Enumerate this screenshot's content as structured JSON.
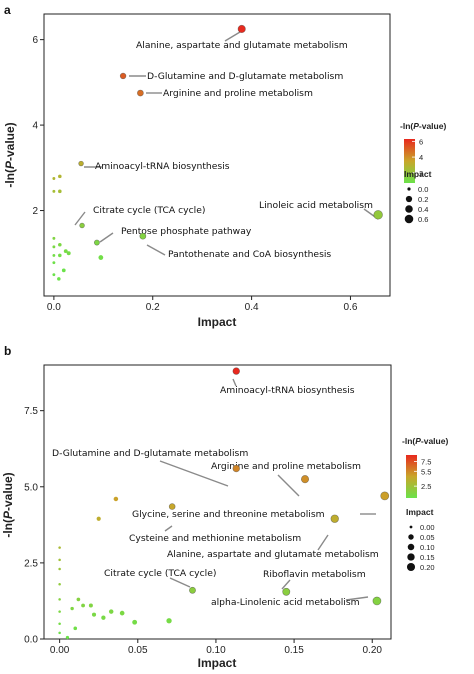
{
  "chart_data": [
    {
      "panel": "a",
      "type": "scatter",
      "xlabel": "Impact",
      "ylabel": "-ln(P-value)",
      "xlim": [
        -0.02,
        0.68
      ],
      "ylim": [
        0,
        6.6
      ],
      "xticks": [
        {
          "v": 0.0,
          "label": "0.0"
        },
        {
          "v": 0.2,
          "label": "0.2"
        },
        {
          "v": 0.4,
          "label": "0.4"
        },
        {
          "v": 0.6,
          "label": "0.6"
        }
      ],
      "yticks": [
        {
          "v": 2,
          "label": "2"
        },
        {
          "v": 4,
          "label": "4"
        },
        {
          "v": 6,
          "label": "6"
        }
      ],
      "color_legend": {
        "title_prefix": "-ln(",
        "title_italic": "P",
        "title_suffix": "-value)",
        "min": 0.7,
        "max": 6.3,
        "ticks": [
          {
            "v": 2,
            "label": "2"
          },
          {
            "v": 4,
            "label": "4"
          },
          {
            "v": 6,
            "label": "6"
          }
        ]
      },
      "size_legend": {
        "title": "Impact",
        "max": 0.66,
        "items": [
          {
            "v": 0.0,
            "label": "0.0"
          },
          {
            "v": 0.2,
            "label": "0.2"
          },
          {
            "v": 0.4,
            "label": "0.4"
          },
          {
            "v": 0.6,
            "label": "0.6"
          }
        ]
      },
      "points": [
        {
          "x": 0.38,
          "y": 6.25,
          "label": "Alanine, aspartate and glutamate metabolism"
        },
        {
          "x": 0.14,
          "y": 5.15,
          "label": "D-Glutamine and D-glutamate metabolism"
        },
        {
          "x": 0.175,
          "y": 4.75,
          "label": "Arginine and proline metabolism"
        },
        {
          "x": 0.055,
          "y": 3.1,
          "label": "Aminoacyl-tRNA biosynthesis"
        },
        {
          "x": 0.656,
          "y": 1.9,
          "label": "Linoleic acid metabolism"
        },
        {
          "x": 0.057,
          "y": 1.65,
          "label": "Citrate cycle (TCA cycle)"
        },
        {
          "x": 0.087,
          "y": 1.25,
          "label": "Pentose phosphate pathway"
        },
        {
          "x": 0.18,
          "y": 1.4,
          "label": "Pantothenate and CoA biosynthesis"
        },
        {
          "x": 0.0,
          "y": 2.75,
          "label": ""
        },
        {
          "x": 0.012,
          "y": 2.8,
          "label": ""
        },
        {
          "x": 0.0,
          "y": 2.45,
          "label": ""
        },
        {
          "x": 0.012,
          "y": 2.45,
          "label": ""
        },
        {
          "x": 0.0,
          "y": 1.35,
          "label": ""
        },
        {
          "x": 0.0,
          "y": 1.15,
          "label": ""
        },
        {
          "x": 0.0,
          "y": 0.95,
          "label": ""
        },
        {
          "x": 0.0,
          "y": 0.78,
          "label": ""
        },
        {
          "x": 0.0,
          "y": 0.5,
          "label": ""
        },
        {
          "x": 0.012,
          "y": 1.2,
          "label": ""
        },
        {
          "x": 0.012,
          "y": 0.95,
          "label": ""
        },
        {
          "x": 0.024,
          "y": 1.05,
          "label": ""
        },
        {
          "x": 0.03,
          "y": 1.0,
          "label": ""
        },
        {
          "x": 0.02,
          "y": 0.6,
          "label": ""
        },
        {
          "x": 0.01,
          "y": 0.4,
          "label": ""
        },
        {
          "x": 0.095,
          "y": 0.9,
          "label": ""
        }
      ]
    },
    {
      "panel": "b",
      "type": "scatter",
      "xlabel": "Impact",
      "ylabel": "-ln(P-value)",
      "xlim": [
        -0.01,
        0.212
      ],
      "ylim": [
        0,
        9.0
      ],
      "xticks": [
        {
          "v": 0.0,
          "label": "0.00"
        },
        {
          "v": 0.05,
          "label": "0.05"
        },
        {
          "v": 0.1,
          "label": "0.10"
        },
        {
          "v": 0.15,
          "label": "0.15"
        },
        {
          "v": 0.2,
          "label": "0.20"
        }
      ],
      "yticks": [
        {
          "v": 0.0,
          "label": "0.0"
        },
        {
          "v": 2.5,
          "label": "2.5"
        },
        {
          "v": 5.0,
          "label": "5.0"
        },
        {
          "v": 7.5,
          "label": "7.5"
        }
      ],
      "color_legend": {
        "title_prefix": "-ln(",
        "title_italic": "P",
        "title_suffix": "-value)",
        "min": 0.1,
        "max": 8.8,
        "ticks": [
          {
            "v": 2.5,
            "label": "2.5"
          },
          {
            "v": 5.5,
            "label": "5.5"
          },
          {
            "v": 7.5,
            "label": "7.5"
          }
        ]
      },
      "size_legend": {
        "title": "Impact",
        "max": 0.21,
        "items": [
          {
            "v": 0.0,
            "label": "0.00"
          },
          {
            "v": 0.05,
            "label": "0.05"
          },
          {
            "v": 0.1,
            "label": "0.10"
          },
          {
            "v": 0.15,
            "label": "0.15"
          },
          {
            "v": 0.2,
            "label": "0.20"
          }
        ]
      },
      "points": [
        {
          "x": 0.113,
          "y": 8.8,
          "label": "Aminoacyl-tRNA biosynthesis"
        },
        {
          "x": 0.113,
          "y": 5.6,
          "label": "D-Glutamine and D-glutamate metabolism"
        },
        {
          "x": 0.157,
          "y": 5.25,
          "label": "Arginine and proline metabolism"
        },
        {
          "x": 0.208,
          "y": 4.7,
          "label": "Glycine, serine and threonine metabolism"
        },
        {
          "x": 0.072,
          "y": 4.35,
          "label": "Cysteine and methionine metabolism"
        },
        {
          "x": 0.176,
          "y": 3.95,
          "label": "Alanine, aspartate and glutamate metabolism"
        },
        {
          "x": 0.085,
          "y": 1.6,
          "label": "Citrate cycle (TCA cycle)"
        },
        {
          "x": 0.145,
          "y": 1.55,
          "label": "Riboflavin metabolism"
        },
        {
          "x": 0.203,
          "y": 1.25,
          "label": "alpha-Linolenic acid metabolism"
        },
        {
          "x": 0.036,
          "y": 4.6,
          "label": ""
        },
        {
          "x": 0.025,
          "y": 3.95,
          "label": ""
        },
        {
          "x": 0.0,
          "y": 3.0,
          "label": ""
        },
        {
          "x": 0.0,
          "y": 2.6,
          "label": ""
        },
        {
          "x": 0.0,
          "y": 2.3,
          "label": ""
        },
        {
          "x": 0.0,
          "y": 1.8,
          "label": ""
        },
        {
          "x": 0.0,
          "y": 1.3,
          "label": ""
        },
        {
          "x": 0.0,
          "y": 0.9,
          "label": ""
        },
        {
          "x": 0.0,
          "y": 0.5,
          "label": ""
        },
        {
          "x": 0.0,
          "y": 0.2,
          "label": ""
        },
        {
          "x": 0.008,
          "y": 1.0,
          "label": ""
        },
        {
          "x": 0.01,
          "y": 0.35,
          "label": ""
        },
        {
          "x": 0.012,
          "y": 1.3,
          "label": ""
        },
        {
          "x": 0.015,
          "y": 1.1,
          "label": ""
        },
        {
          "x": 0.02,
          "y": 1.1,
          "label": ""
        },
        {
          "x": 0.022,
          "y": 0.8,
          "label": ""
        },
        {
          "x": 0.028,
          "y": 0.7,
          "label": ""
        },
        {
          "x": 0.033,
          "y": 0.9,
          "label": ""
        },
        {
          "x": 0.04,
          "y": 0.85,
          "label": ""
        },
        {
          "x": 0.048,
          "y": 0.55,
          "label": ""
        },
        {
          "x": 0.07,
          "y": 0.6,
          "label": ""
        },
        {
          "x": 0.005,
          "y": 0.05,
          "label": ""
        }
      ]
    }
  ]
}
